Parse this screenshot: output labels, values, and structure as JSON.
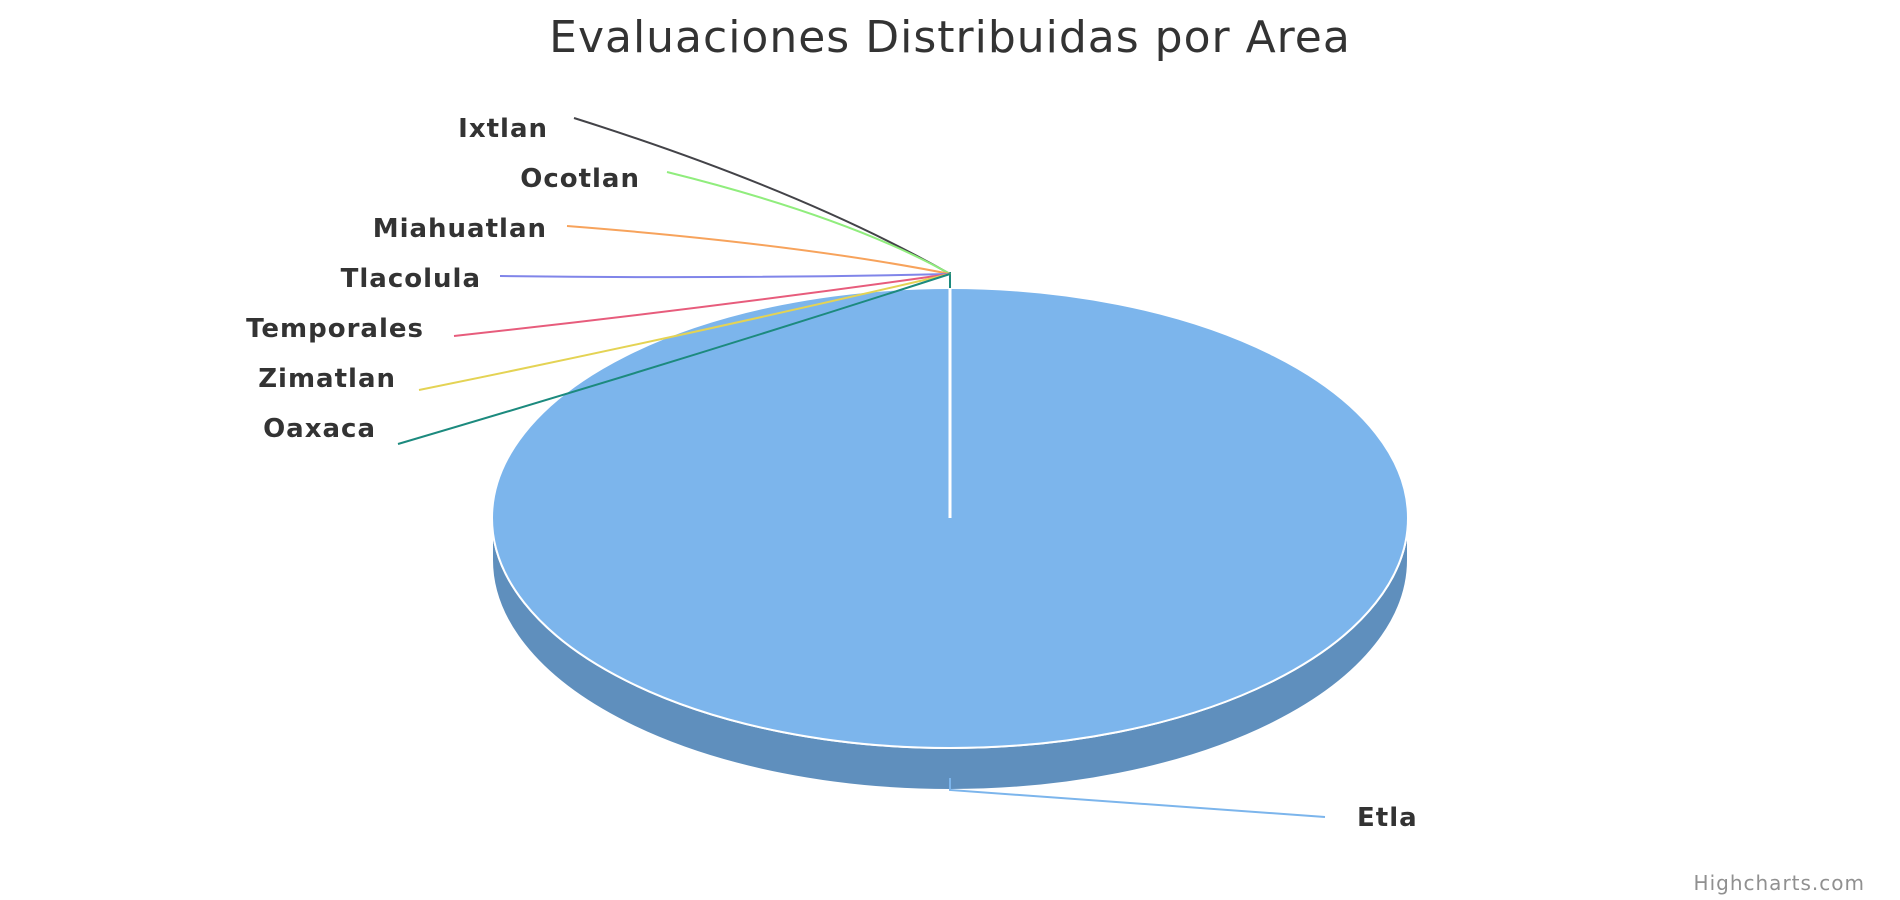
{
  "chart_data": {
    "type": "pie",
    "title": "Evaluaciones Distribuidas por Area",
    "three_d": true,
    "slices": [
      {
        "name": "Etla",
        "value": 100,
        "color": "#7cb5ec",
        "side_color": "#5f8fbd"
      },
      {
        "name": "Oaxaca",
        "value": 0,
        "color": "#1c8a7e"
      },
      {
        "name": "Zimatlan",
        "value": 0,
        "color": "#e4d354"
      },
      {
        "name": "Temporales",
        "value": 0,
        "color": "#e75c7c"
      },
      {
        "name": "Tlacolula",
        "value": 0,
        "color": "#8085e9"
      },
      {
        "name": "Miahuatlan",
        "value": 0,
        "color": "#f7a35c"
      },
      {
        "name": "Ocotlan",
        "value": 0,
        "color": "#90ed7d"
      },
      {
        "name": "Ixtlan",
        "value": 0,
        "color": "#434348"
      }
    ]
  },
  "credits": "Highcharts.com"
}
